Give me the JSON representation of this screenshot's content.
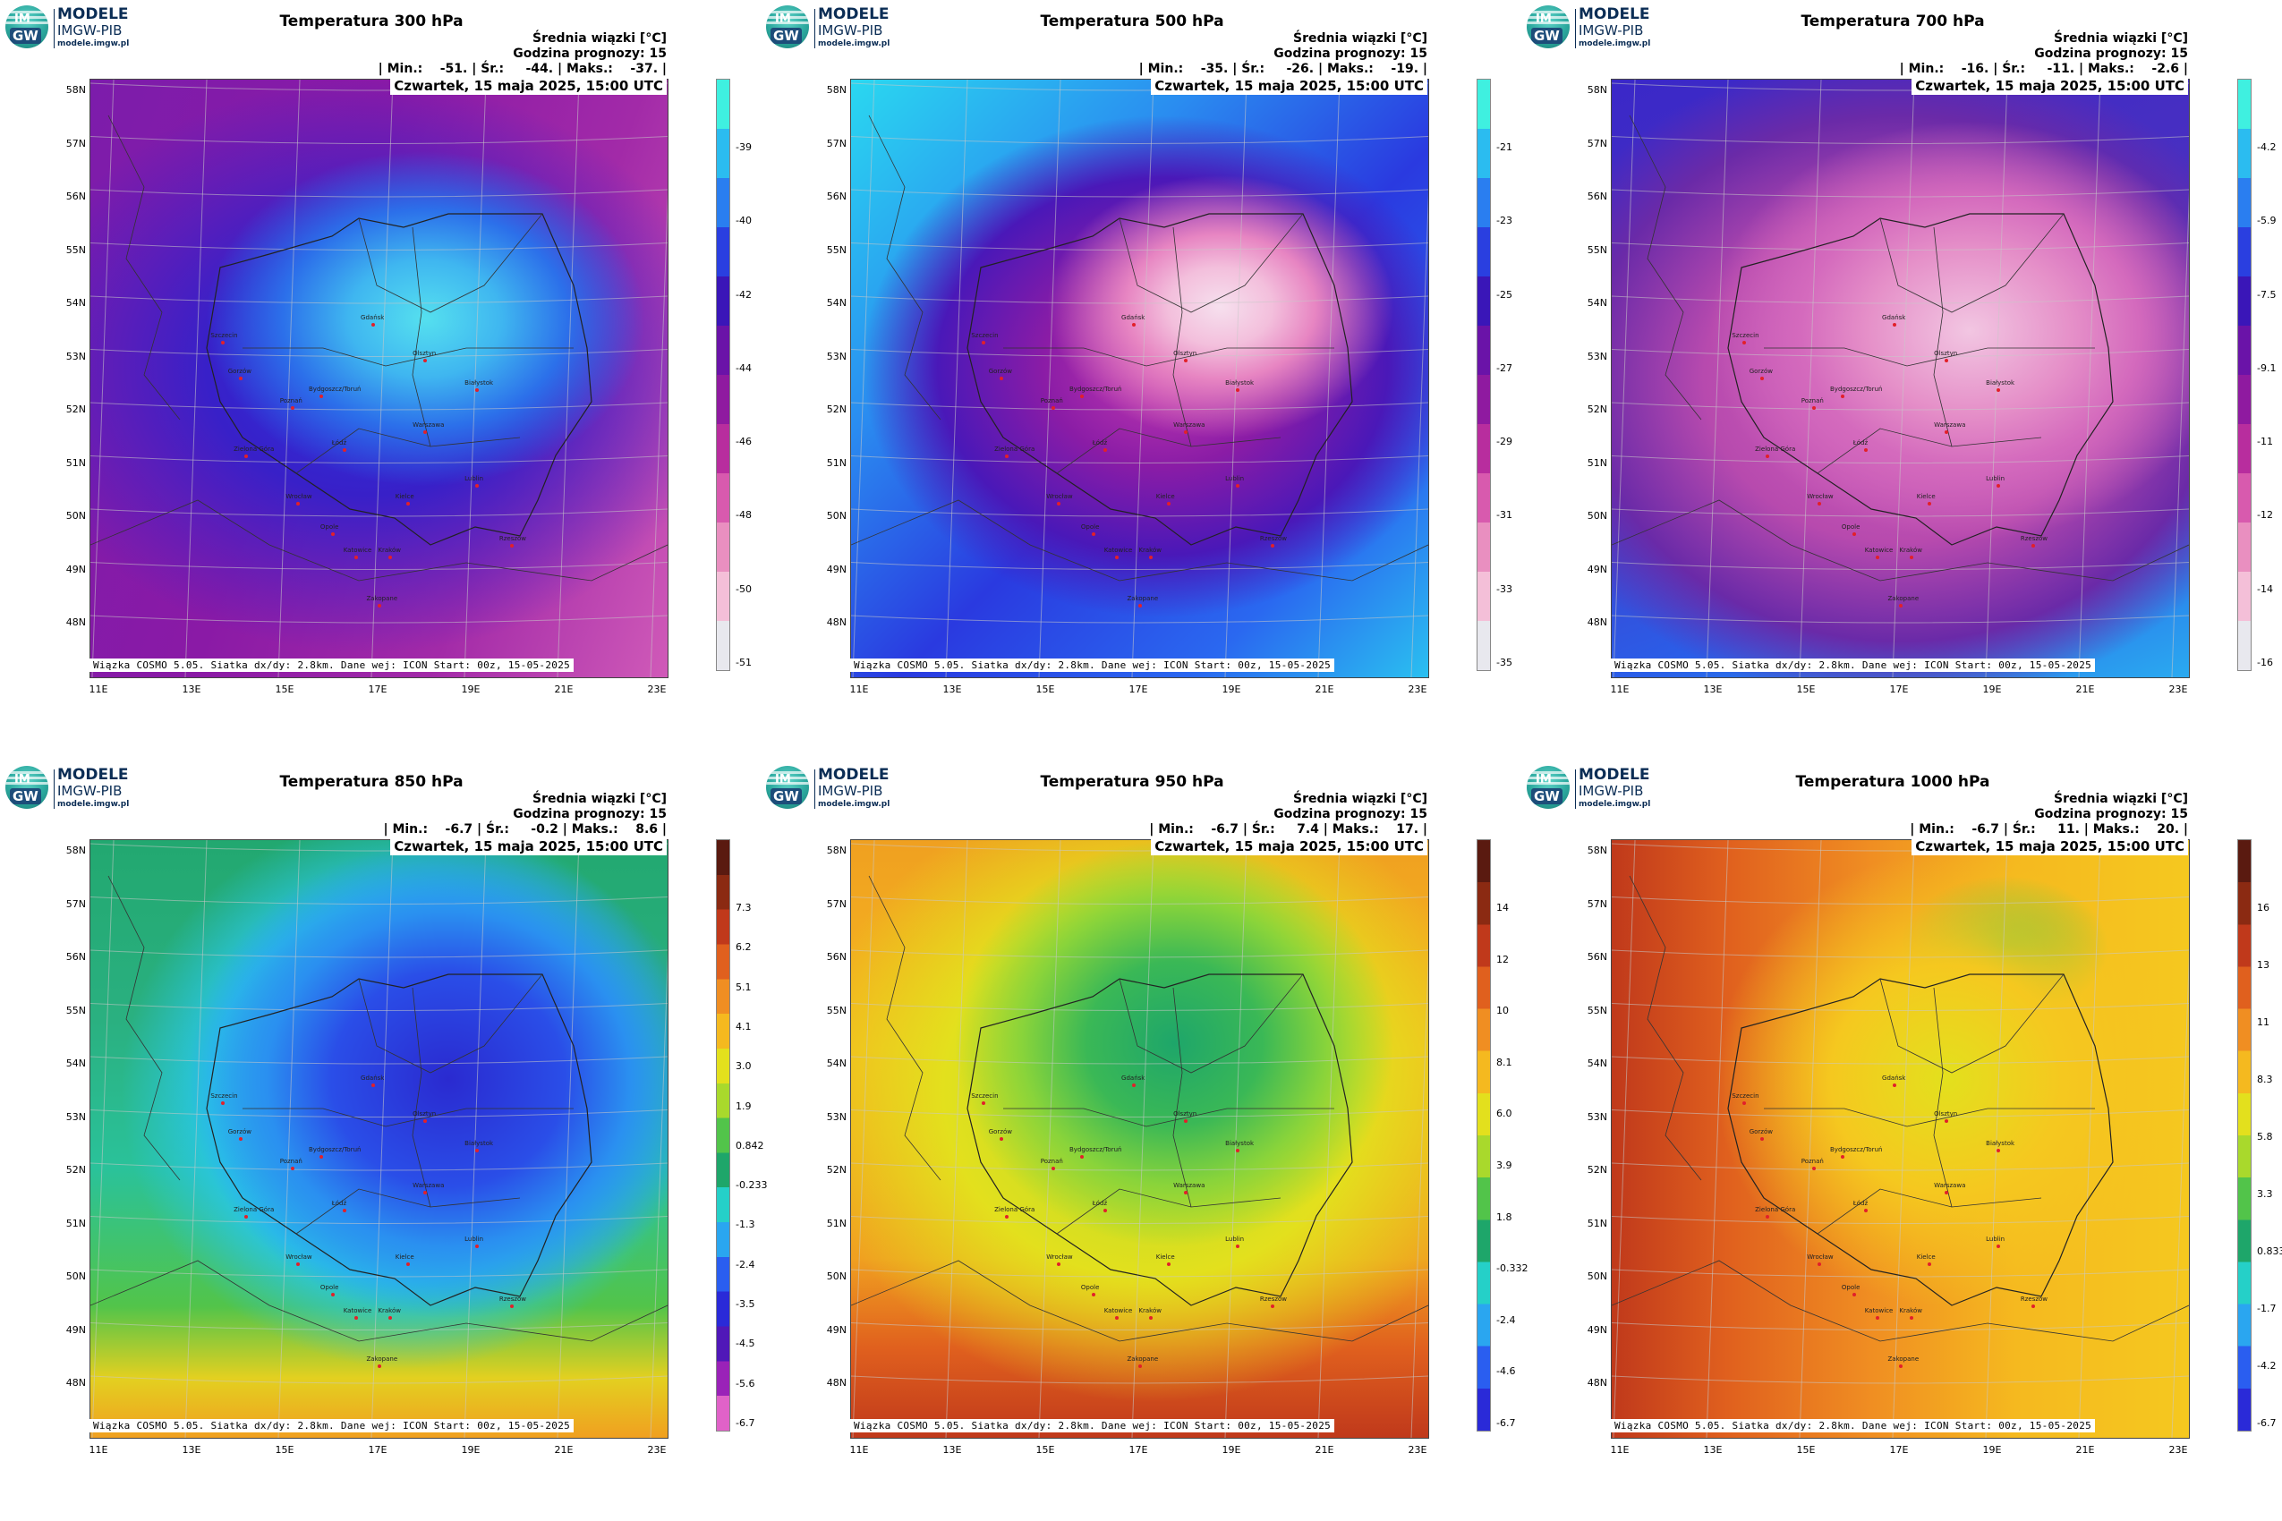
{
  "logo": {
    "line1": "MODELE",
    "line2": "IMGW-PIB",
    "line3": "modele.imgw.pl",
    "mark_top": "IM",
    "mark_bottom": "GW"
  },
  "common": {
    "info_line1": "Średnia wiązki [°C]",
    "info_line2": "Godzina prognozy: 15",
    "date": "Czwartek, 15 maja 2025, 15:00 UTC",
    "footer": "Wiązka COSMO 5.05. Siatka dx/dy: 2.8km. Dane wej: ICON Start: 00z, 15-05-2025",
    "lat_labels": [
      "58N",
      "57N",
      "56N",
      "55N",
      "54N",
      "53N",
      "52N",
      "51N",
      "50N",
      "49N",
      "48N"
    ],
    "lon_labels": [
      "11E",
      "13E",
      "15E",
      "17E",
      "19E",
      "21E",
      "23E"
    ],
    "cities": [
      "Gdańsk",
      "Olsztyn",
      "Szczecin",
      "Bydgoszcz/Toruń",
      "Białystok",
      "Gorzów",
      "Poznań",
      "Warszawa",
      "Zielona Góra",
      "Łódź",
      "Lublin",
      "Wrocław",
      "Kielce",
      "Opole",
      "Rzeszów",
      "Katowice",
      "Kraków",
      "Zakopane"
    ]
  },
  "panels": [
    {
      "title": "Temperatura 300 hPa",
      "stats": "| Min.:    -51. | Śr.:     -44. | Maks.:    -37. |",
      "colorbar": {
        "labels": [
          "-39",
          "-40",
          "-42",
          "-44",
          "-46",
          "-48",
          "-50",
          "-51"
        ],
        "colors": [
          "#3ff0e0",
          "#2bbcf0",
          "#2a7ef0",
          "#2a3fe0",
          "#3a16b8",
          "#6a13a8",
          "#8f1aa0",
          "#b82d9e",
          "#d85aae",
          "#e98fc0",
          "#f4bfd8",
          "#e8e8ee"
        ]
      },
      "scheme": "t300"
    },
    {
      "title": "Temperatura 500 hPa",
      "stats": "| Min.:    -35. | Śr.:     -26. | Maks.:    -19. |",
      "colorbar": {
        "labels": [
          "-21",
          "-23",
          "-25",
          "-27",
          "-29",
          "-31",
          "-33",
          "-35"
        ],
        "colors": [
          "#3ff0e0",
          "#2bbcf0",
          "#2a7ef0",
          "#2a3fe0",
          "#3a16b8",
          "#6a13a8",
          "#8f1aa0",
          "#b82d9e",
          "#d85aae",
          "#e98fc0",
          "#f4bfd8",
          "#e8e8ee"
        ]
      },
      "scheme": "t500"
    },
    {
      "title": "Temperatura 700 hPa",
      "stats": "| Min.:    -16. | Śr.:     -11. | Maks.:    -2.6 |",
      "colorbar": {
        "labels": [
          "-4.2",
          "-5.9",
          "-7.5",
          "-9.1",
          "-11",
          "-12",
          "-14",
          "-16"
        ],
        "colors": [
          "#3ff0e0",
          "#2bbcf0",
          "#2a7ef0",
          "#2a3fe0",
          "#3a16b8",
          "#6a13a8",
          "#8f1aa0",
          "#b82d9e",
          "#d85aae",
          "#e98fc0",
          "#f4bfd8",
          "#e8e8ee"
        ]
      },
      "scheme": "t700"
    },
    {
      "title": "Temperatura 850 hPa",
      "stats": "| Min.:    -6.7 | Śr.:     -0.2 | Maks.:    8.6 |",
      "colorbar": {
        "labels": [
          "7.3",
          "6.2",
          "5.1",
          "4.1",
          "3.0",
          "1.9",
          "0.842",
          "-0.233",
          "-1.3",
          "-2.4",
          "-3.5",
          "-4.5",
          "-5.6",
          "-6.7"
        ],
        "colors": [
          "#5a1a10",
          "#8b2a12",
          "#c0391b",
          "#e0601e",
          "#f08e22",
          "#f5b91f",
          "#e3e01d",
          "#a9d92c",
          "#52c44a",
          "#1ea66a",
          "#25d0c8",
          "#2aa6f0",
          "#2a5ef0",
          "#2a2ad8",
          "#5018b8",
          "#9a22b8",
          "#e062c8"
        ]
      },
      "scheme": "t850"
    },
    {
      "title": "Temperatura 950 hPa",
      "stats": "| Min.:    -6.7 | Śr.:     7.4 | Maks.:    17. |",
      "colorbar": {
        "labels": [
          "14",
          "12",
          "10",
          "8.1",
          "6.0",
          "3.9",
          "1.8",
          "-0.332",
          "-2.4",
          "-4.6",
          "-6.7"
        ],
        "colors": [
          "#5a1a10",
          "#8b2a12",
          "#c0391b",
          "#e0601e",
          "#f08e22",
          "#f5b91f",
          "#e3e01d",
          "#a9d92c",
          "#52c44a",
          "#1ea66a",
          "#25d0c8",
          "#2aa6f0",
          "#2a5ef0",
          "#2a2ad8"
        ]
      },
      "scheme": "t950"
    },
    {
      "title": "Temperatura 1000 hPa",
      "stats": "| Min.:    -6.7 | Śr.:     11. | Maks.:    20. |",
      "colorbar": {
        "labels": [
          "16",
          "13",
          "11",
          "8.3",
          "5.8",
          "3.3",
          "0.833",
          "-1.7",
          "-4.2",
          "-6.7"
        ],
        "colors": [
          "#5a1a10",
          "#8b2a12",
          "#c0391b",
          "#e0601e",
          "#f08e22",
          "#f5b91f",
          "#e3e01d",
          "#a9d92c",
          "#52c44a",
          "#1ea66a",
          "#25d0c8",
          "#2aa6f0",
          "#2a5ef0",
          "#2a2ad8"
        ]
      },
      "scheme": "t1000"
    }
  ]
}
